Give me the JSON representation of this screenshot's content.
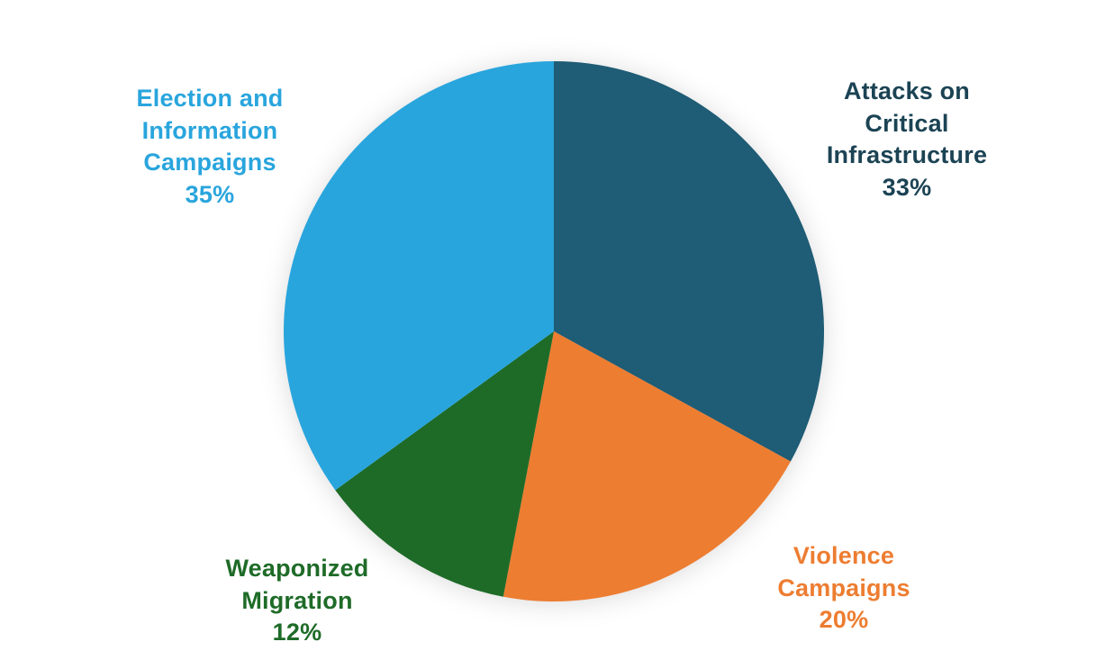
{
  "chart_data": {
    "type": "pie",
    "title": "",
    "start_angle_deg": 0,
    "direction": "clockwise",
    "legend": "none",
    "labels_position": "outside",
    "slices": [
      {
        "label": "Attacks on Critical Infrastructure",
        "value": 33,
        "color": "#1F5C75"
      },
      {
        "label": "Violence Campaigns",
        "value": 20,
        "color": "#ED7D31"
      },
      {
        "label": "Weaponized Migration",
        "value": 12,
        "color": "#1E6B28"
      },
      {
        "label": "Election and Information Campaigns",
        "value": 35,
        "color": "#29A5DD"
      }
    ]
  },
  "labels": {
    "election": {
      "text": "Election and\nInformation\nCampaigns\n35%",
      "color": "#29A5DD"
    },
    "attacks": {
      "text": "Attacks on\nCritical\nInfrastructure\n33%",
      "color": "#1B4354"
    },
    "violence": {
      "text": "Violence\nCampaigns\n20%",
      "color": "#ED7D31"
    },
    "migration": {
      "text": "Weaponized\nMigration\n12%",
      "color": "#1E6B28"
    }
  }
}
